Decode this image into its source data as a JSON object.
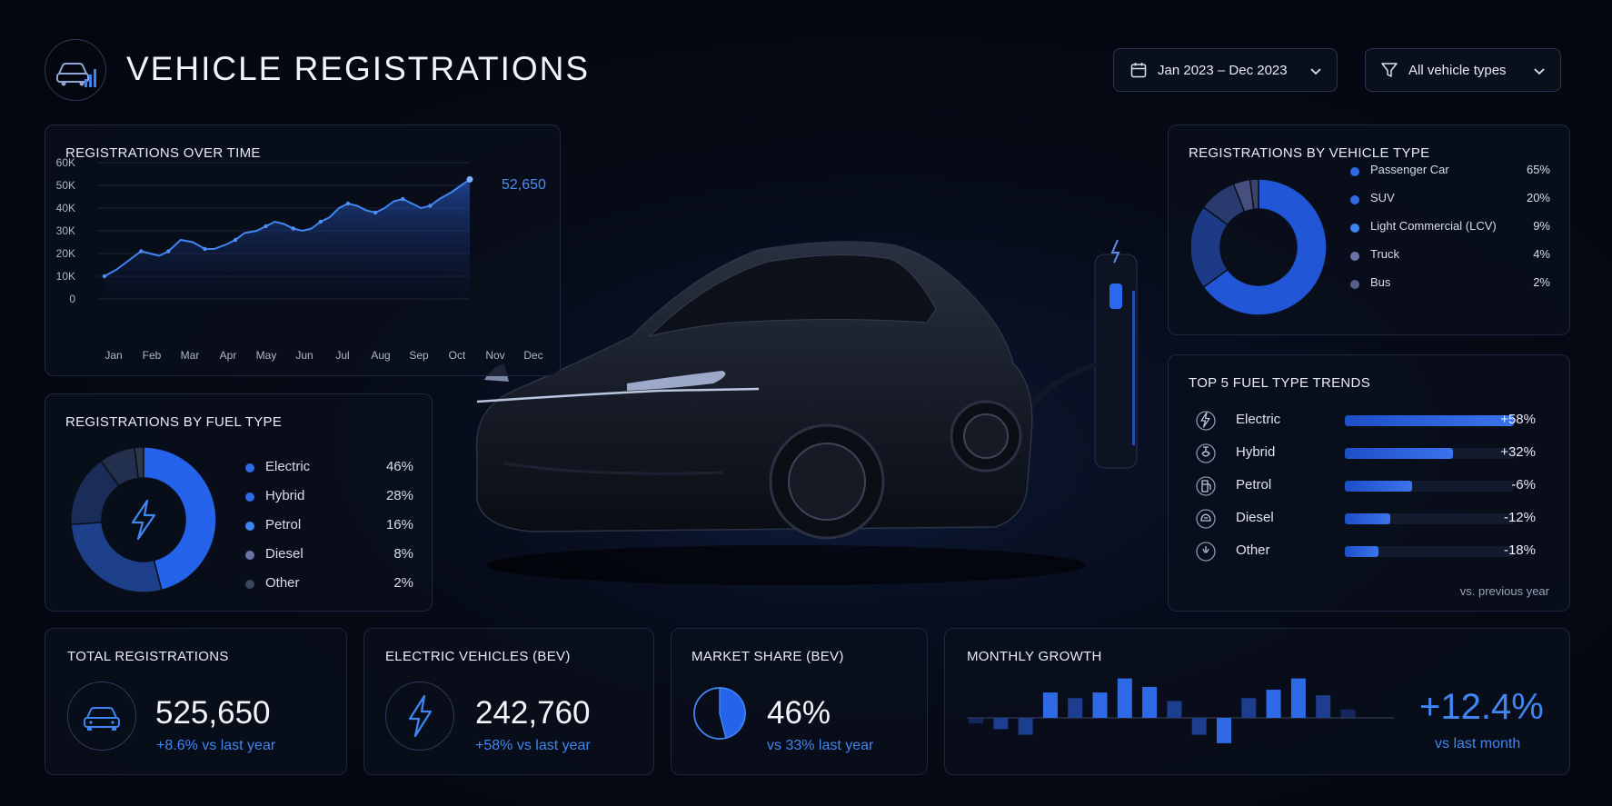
{
  "header": {
    "title": "VEHICLE REGISTRATIONS",
    "date_filter": "Jan 2023 – Dec 2023",
    "type_filter": "All vehicle types",
    "icons": [
      "car-chart-icon",
      "calendar-icon",
      "filter-icon",
      "chevron-down-icon"
    ]
  },
  "hero": {
    "description": "dark sedan beside an EV charging station"
  },
  "colors": {
    "accent": "#3b82f6",
    "positive": "#3f86f2",
    "background": "#05080f"
  },
  "over_time": {
    "title": "REGISTRATIONS OVER TIME",
    "last_label": "52,650",
    "y_ticks": [
      "60K",
      "50K",
      "40K",
      "30K",
      "20K",
      "10K",
      "0"
    ]
  },
  "fuel_type": {
    "title": "REGISTRATIONS BY FUEL TYPE",
    "center_icon": "lightning-icon",
    "items": [
      {
        "name": "Electric",
        "pct": "46%",
        "value": 46,
        "color": "#2563eb"
      },
      {
        "name": "Hybrid",
        "pct": "28%",
        "value": 28,
        "color": "#1e3f8a"
      },
      {
        "name": "Petrol",
        "pct": "16%",
        "value": 16,
        "color": "#1a2c58"
      },
      {
        "name": "Diesel",
        "pct": "8%",
        "value": 8,
        "color": "#22304e"
      },
      {
        "name": "Other",
        "pct": "2%",
        "value": 2,
        "color": "#2d3648"
      }
    ],
    "dot_colors": [
      "#2f6ae6",
      "#2f6ae6",
      "#3f86f2",
      "#6b74a8",
      "#3c4560"
    ]
  },
  "vehicle_type": {
    "title": "REGISTRATIONS BY VEHICLE TYPE",
    "items": [
      {
        "name": "Passenger Car",
        "pct": "65%",
        "value": 65,
        "color": "#2157d6"
      },
      {
        "name": "SUV",
        "pct": "20%",
        "value": 20,
        "color": "#1c3a85"
      },
      {
        "name": "Light Commercial (LCV)",
        "pct": "9%",
        "value": 9,
        "color": "#2a3a6e"
      },
      {
        "name": "Truck",
        "pct": "4%",
        "value": 4,
        "color": "#45507e"
      },
      {
        "name": "Bus",
        "pct": "2%",
        "value": 2,
        "color": "#3a4466"
      }
    ],
    "dot_colors": [
      "#2f6ae6",
      "#2f6ae6",
      "#3f86f2",
      "#6b74a8",
      "#55608c"
    ]
  },
  "fuel_trends": {
    "title": "TOP 5 FUEL TYPE TRENDS",
    "footnote": "vs. previous year",
    "items": [
      {
        "name": "Electric",
        "change": "+58%",
        "bar_fraction": 1.0,
        "icon": "lightning-icon"
      },
      {
        "name": "Hybrid",
        "change": "+32%",
        "bar_fraction": 0.64,
        "icon": "hybrid-icon"
      },
      {
        "name": "Petrol",
        "change": "-6%",
        "bar_fraction": 0.4,
        "icon": "fuel-pump-icon"
      },
      {
        "name": "Diesel",
        "change": "-12%",
        "bar_fraction": 0.27,
        "icon": "diesel-icon"
      },
      {
        "name": "Other",
        "change": "-18%",
        "bar_fraction": 0.2,
        "icon": "other-fuel-icon"
      }
    ]
  },
  "kpis": {
    "total": {
      "title": "TOTAL REGISTRATIONS",
      "value": "525,650",
      "sub": "+8.6% vs last year",
      "icon": "car-icon"
    },
    "ev": {
      "title": "ELECTRIC VEHICLES (BEV)",
      "value": "242,760",
      "sub": "+58% vs last year",
      "icon": "lightning-icon"
    },
    "share": {
      "title": "MARKET SHARE (BEV)",
      "value": "46%",
      "sub": "vs 33% last year",
      "icon": "pie-icon",
      "share_fraction": 0.46
    },
    "growth": {
      "title": "MONTHLY GROWTH",
      "value": "+12.4%",
      "sub": "vs last month"
    }
  },
  "chart_data": [
    {
      "type": "area",
      "title": "REGISTRATIONS OVER TIME",
      "categories": [
        "Jan",
        "Feb",
        "Mar",
        "Apr",
        "May",
        "Jun",
        "Jul",
        "Aug",
        "Sep",
        "Oct",
        "Nov",
        "Dec"
      ],
      "x_ticks": [
        "Jan",
        "Feb",
        "Mar",
        "Apr",
        "May",
        "Jun",
        "Jul",
        "Aug",
        "Sep",
        "Oct",
        "Nov",
        "Dec"
      ],
      "y_ticks": [
        "0",
        "10K",
        "20K",
        "30K",
        "40K",
        "50K",
        "60K"
      ],
      "points": [
        [
          0,
          10000
        ],
        [
          0.4,
          13000
        ],
        [
          0.8,
          17000
        ],
        [
          1.2,
          21000
        ],
        [
          1.5,
          20000
        ],
        [
          1.8,
          19000
        ],
        [
          2.1,
          21000
        ],
        [
          2.5,
          26000
        ],
        [
          2.9,
          25000
        ],
        [
          3.3,
          22000
        ],
        [
          3.6,
          22000
        ],
        [
          4.0,
          24000
        ],
        [
          4.3,
          26000
        ],
        [
          4.6,
          29000
        ],
        [
          5.0,
          30000
        ],
        [
          5.3,
          32000
        ],
        [
          5.6,
          34000
        ],
        [
          5.9,
          33000
        ],
        [
          6.2,
          31000
        ],
        [
          6.5,
          30000
        ],
        [
          6.8,
          31000
        ],
        [
          7.1,
          34000
        ],
        [
          7.4,
          36000
        ],
        [
          7.7,
          40000
        ],
        [
          8.0,
          42000
        ],
        [
          8.3,
          41000
        ],
        [
          8.6,
          39000
        ],
        [
          8.9,
          38000
        ],
        [
          9.2,
          40000
        ],
        [
          9.5,
          43000
        ],
        [
          9.8,
          44000
        ],
        [
          10.1,
          42000
        ],
        [
          10.4,
          40000
        ],
        [
          10.7,
          41000
        ],
        [
          11.0,
          44000
        ],
        [
          11.4,
          47000
        ],
        [
          12.0,
          52650
        ]
      ],
      "last_value": 52650,
      "ylim": [
        0,
        60000
      ],
      "grid": true
    },
    {
      "type": "pie",
      "title": "REGISTRATIONS BY FUEL TYPE",
      "categories": [
        "Electric",
        "Hybrid",
        "Petrol",
        "Diesel",
        "Other"
      ],
      "values": [
        46,
        28,
        16,
        8,
        2
      ]
    },
    {
      "type": "pie",
      "title": "REGISTRATIONS BY VEHICLE TYPE",
      "categories": [
        "Passenger Car",
        "SUV",
        "Light Commercial (LCV)",
        "Truck",
        "Bus"
      ],
      "values": [
        65,
        20,
        9,
        4,
        2
      ]
    },
    {
      "type": "bar",
      "title": "TOP 5 FUEL TYPE TRENDS",
      "categories": [
        "Electric",
        "Hybrid",
        "Petrol",
        "Diesel",
        "Other"
      ],
      "values": [
        58,
        32,
        -6,
        -12,
        -18
      ]
    },
    {
      "type": "bar",
      "title": "MONTHLY GROWTH",
      "values": [
        -2,
        -4,
        -6,
        9,
        7,
        9,
        14,
        11,
        6,
        -6,
        -9,
        7,
        10,
        14,
        8,
        3
      ]
    }
  ]
}
